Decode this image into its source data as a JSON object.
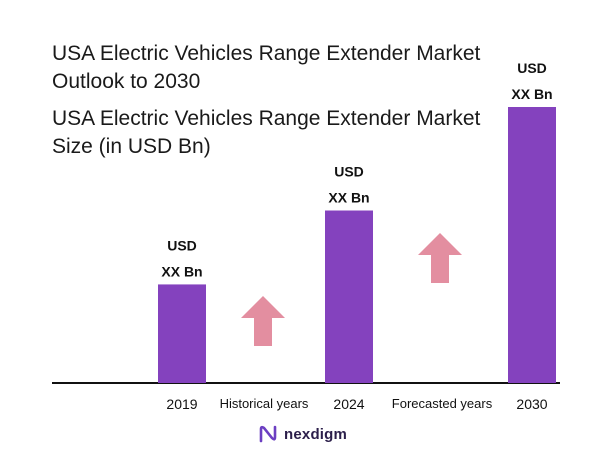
{
  "chart_data": {
    "type": "bar",
    "title": "USA Electric Vehicles Range Extender Market Outlook to 2030",
    "subtitle": "USA Electric Vehicles Range Extender Market Size (in USD Bn)",
    "categories": [
      "2019",
      "2024",
      "2030"
    ],
    "values": [
      1,
      1.75,
      2.8
    ],
    "value_labels": [
      [
        "USD",
        "XX Bn"
      ],
      [
        "USD",
        "XX Bn"
      ],
      [
        "USD",
        "XX Bn"
      ]
    ],
    "period_labels": [
      "Historical years",
      "Forecasted years"
    ],
    "bar_color": "#8442be",
    "arrow_color": "#e38ea0",
    "ylim": [
      0,
      3
    ],
    "grid": false,
    "xlabel": "",
    "ylabel": ""
  },
  "brand": {
    "name": "nexdigm",
    "icon": "nexdigm-logo-icon",
    "color": "#6c3fc2"
  }
}
